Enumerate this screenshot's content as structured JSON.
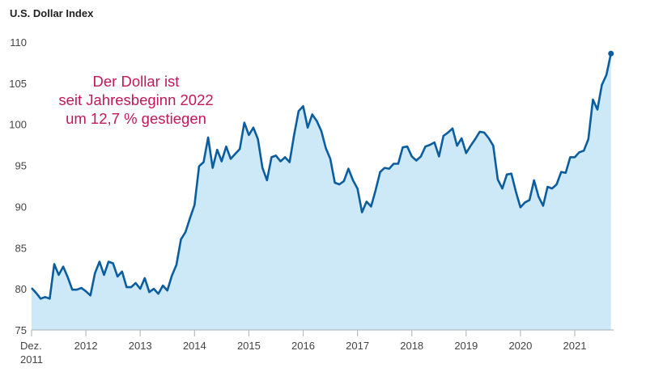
{
  "chart_data": {
    "type": "area",
    "title": "U.S. Dollar Index",
    "annotation": [
      "Der Dollar ist",
      "seit Jahresbeginn 2022",
      "um 12,7 % gestiegen"
    ],
    "xlabel": "",
    "ylabel": "",
    "ylim": [
      75,
      110
    ],
    "yticks": [
      75,
      80,
      85,
      90,
      95,
      100,
      105,
      110
    ],
    "xticks": [
      {
        "at": "2011-12",
        "label": [
          "Dez.",
          "2011"
        ]
      },
      {
        "at": "2012-12",
        "label": [
          "2012"
        ]
      },
      {
        "at": "2013-12",
        "label": [
          "2013"
        ]
      },
      {
        "at": "2014-12",
        "label": [
          "2014"
        ]
      },
      {
        "at": "2015-12",
        "label": [
          "2015"
        ]
      },
      {
        "at": "2016-12",
        "label": [
          "2016"
        ]
      },
      {
        "at": "2017-12",
        "label": [
          "2017"
        ]
      },
      {
        "at": "2018-12",
        "label": [
          "2018"
        ]
      },
      {
        "at": "2019-12",
        "label": [
          "2019"
        ]
      },
      {
        "at": "2020-12",
        "label": [
          "2020"
        ]
      },
      {
        "at": "2021-12",
        "label": [
          "2021"
        ]
      }
    ],
    "grid": false,
    "line_color": "#0b5d9e",
    "fill_color": "#cde9f8",
    "annotation_color": "#c2185b",
    "end_marker": true,
    "x": [
      "2011-12",
      "2012-01",
      "2012-02",
      "2012-03",
      "2012-04",
      "2012-05",
      "2012-06",
      "2012-07",
      "2012-08",
      "2012-09",
      "2012-10",
      "2012-11",
      "2012-12",
      "2013-01",
      "2013-02",
      "2013-03",
      "2013-04",
      "2013-05",
      "2013-06",
      "2013-07",
      "2013-08",
      "2013-09",
      "2013-10",
      "2013-11",
      "2013-12",
      "2014-01",
      "2014-02",
      "2014-03",
      "2014-04",
      "2014-05",
      "2014-06",
      "2014-07",
      "2014-08",
      "2014-09",
      "2014-10",
      "2014-11",
      "2014-12",
      "2015-01",
      "2015-02",
      "2015-03",
      "2015-04",
      "2015-05",
      "2015-06",
      "2015-07",
      "2015-08",
      "2015-09",
      "2015-10",
      "2015-11",
      "2015-12",
      "2016-01",
      "2016-02",
      "2016-03",
      "2016-04",
      "2016-05",
      "2016-06",
      "2016-07",
      "2016-08",
      "2016-09",
      "2016-10",
      "2016-11",
      "2016-12",
      "2017-01",
      "2017-02",
      "2017-03",
      "2017-04",
      "2017-05",
      "2017-06",
      "2017-07",
      "2017-08",
      "2017-09",
      "2017-10",
      "2017-11",
      "2017-12",
      "2018-01",
      "2018-02",
      "2018-03",
      "2018-04",
      "2018-05",
      "2018-06",
      "2018-07",
      "2018-08",
      "2018-09",
      "2018-10",
      "2018-11",
      "2018-12",
      "2019-01",
      "2019-02",
      "2019-03",
      "2019-04",
      "2019-05",
      "2019-06",
      "2019-07",
      "2019-08",
      "2019-09",
      "2019-10",
      "2019-11",
      "2019-12",
      "2020-01",
      "2020-02",
      "2020-03",
      "2020-04",
      "2020-05",
      "2020-06",
      "2020-07",
      "2020-08",
      "2020-09",
      "2020-10",
      "2020-11",
      "2020-12",
      "2021-01",
      "2021-02",
      "2021-03",
      "2021-04",
      "2021-05",
      "2021-06",
      "2021-07",
      "2021-08",
      "2021-09",
      "2021-10",
      "2021-11",
      "2021-12",
      "2022-01",
      "2022-02",
      "2022-03",
      "2022-04",
      "2022-05",
      "2022-06",
      "2022-07",
      "2022-08"
    ],
    "values": [
      80.1,
      79.5,
      78.8,
      79.0,
      78.8,
      83.0,
      81.7,
      82.7,
      81.4,
      79.9,
      79.9,
      80.1,
      79.7,
      79.2,
      81.9,
      83.3,
      81.7,
      83.3,
      83.1,
      81.5,
      82.1,
      80.2,
      80.2,
      80.7,
      80.0,
      81.3,
      79.6,
      80.0,
      79.4,
      80.4,
      79.8,
      81.6,
      82.9,
      86.0,
      86.9,
      88.6,
      90.2,
      94.9,
      95.4,
      98.4,
      94.7,
      96.9,
      95.5,
      97.3,
      95.8,
      96.4,
      97.0,
      100.2,
      98.7,
      99.6,
      98.2,
      94.7,
      93.2,
      96.0,
      96.2,
      95.5,
      96.0,
      95.4,
      98.7,
      101.6,
      102.2,
      99.6,
      101.2,
      100.4,
      99.2,
      97.1,
      95.8,
      92.9,
      92.7,
      93.1,
      94.6,
      93.2,
      92.2,
      89.3,
      90.6,
      90.0,
      92.0,
      94.2,
      94.7,
      94.6,
      95.2,
      95.2,
      97.2,
      97.3,
      96.1,
      95.6,
      96.1,
      97.3,
      97.5,
      97.8,
      96.1,
      98.6,
      99.0,
      99.5,
      97.4,
      98.3,
      96.5,
      97.4,
      98.2,
      99.1,
      99.0,
      98.3,
      97.4,
      93.3,
      92.2,
      93.9,
      94.0,
      91.8,
      89.9,
      90.5,
      90.8,
      93.2,
      91.2,
      90.1,
      92.4,
      92.2,
      92.7,
      94.2,
      94.1,
      96.0,
      96.0,
      96.6,
      96.8,
      98.2,
      103.0,
      101.8,
      104.8,
      106.0,
      108.6
    ]
  }
}
